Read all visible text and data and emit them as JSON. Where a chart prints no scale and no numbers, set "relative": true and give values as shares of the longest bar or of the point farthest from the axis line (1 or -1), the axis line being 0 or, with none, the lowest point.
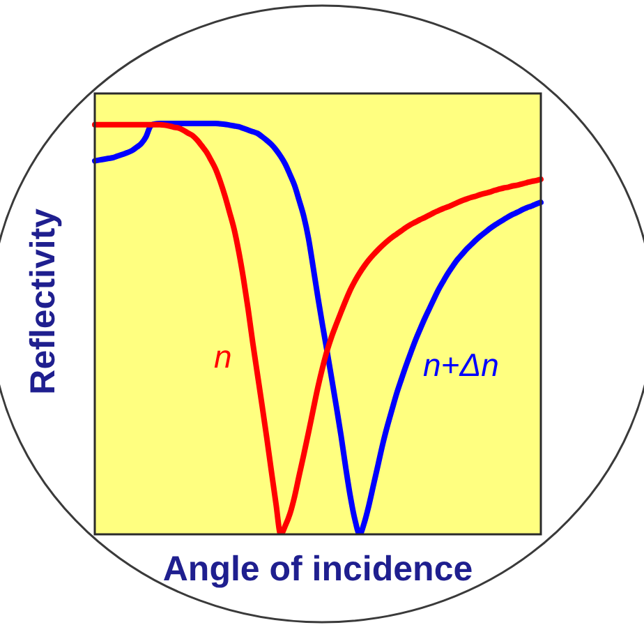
{
  "chart_data": {
    "type": "line",
    "xlabel": "Angle of incidence",
    "ylabel": "Reflectivity",
    "relative": true,
    "tick_labels": false,
    "marker": "none",
    "categories": [
      null,
      null,
      null,
      null,
      null,
      null,
      null,
      null,
      null,
      null,
      null,
      null,
      null,
      null,
      null,
      null,
      null,
      null,
      null,
      null,
      null,
      null,
      null,
      null,
      null,
      null,
      null,
      null,
      null,
      null,
      null,
      null,
      null,
      null,
      null,
      null,
      null,
      null,
      null,
      null,
      null,
      null,
      null,
      null,
      null,
      null,
      null,
      null,
      null,
      null,
      null,
      null,
      null,
      null,
      null,
      null,
      null,
      null,
      null,
      null,
      null,
      null,
      null,
      null,
      null,
      null,
      null,
      null,
      null,
      null,
      null,
      null,
      null,
      null,
      null,
      null,
      null,
      null,
      null,
      null,
      null,
      null,
      null,
      null,
      null,
      null,
      null,
      null,
      null,
      null,
      null,
      null,
      null,
      null,
      null,
      null,
      null
    ],
    "series": [
      {
        "name": "n",
        "color": "#ff0000",
        "values": [
          0.997,
          0.997,
          0.997,
          0.997,
          0.997,
          0.997,
          0.997,
          0.997,
          0.997,
          0.997,
          0.997,
          0.997,
          0.997,
          0.997,
          0.997,
          0.996,
          0.994,
          0.991,
          0.989,
          0.984,
          0.977,
          0.971,
          0.96,
          0.946,
          0.931,
          0.911,
          0.889,
          0.859,
          0.824,
          0.784,
          0.742,
          0.687,
          0.622,
          0.548,
          0.466,
          0.39,
          0.314,
          0.236,
          0.154,
          0.074,
          0,
          0.021,
          0.05,
          0.092,
          0.144,
          0.195,
          0.248,
          0.303,
          0.357,
          0.405,
          0.447,
          0.482,
          0.512,
          0.541,
          0.569,
          0.595,
          0.617,
          0.636,
          0.653,
          0.668,
          0.681,
          0.693,
          0.704,
          0.714,
          0.723,
          0.731,
          0.739,
          0.747,
          0.754,
          0.76,
          0.766,
          0.771,
          0.777,
          0.783,
          0.788,
          0.793,
          0.797,
          0.802,
          0.807,
          0.812,
          0.816,
          0.82,
          0.823,
          0.827,
          0.83,
          0.833,
          0.837,
          0.84,
          0.843,
          0.845,
          0.848,
          0.85,
          0.853,
          0.856,
          0.859,
          0.861,
          0.864
        ]
      },
      {
        "name": "n+Δn",
        "color": "#0000ff",
        "values": [
          0.909,
          0.911,
          0.913,
          0.915,
          0.917,
          0.921,
          0.925,
          0.929,
          0.934,
          0.942,
          0.951,
          0.967,
          0.994,
          0.999,
          1,
          1,
          1,
          1,
          1,
          1,
          1,
          1,
          1,
          1,
          1,
          1,
          1,
          0.999,
          0.998,
          0.996,
          0.994,
          0.992,
          0.988,
          0.984,
          0.98,
          0.976,
          0.968,
          0.959,
          0.949,
          0.936,
          0.92,
          0.901,
          0.876,
          0.849,
          0.812,
          0.773,
          0.72,
          0.65,
          0.578,
          0.51,
          0.445,
          0.378,
          0.31,
          0.24,
          0.163,
          0.092,
          0.035,
          0,
          0.028,
          0.071,
          0.121,
          0.171,
          0.221,
          0.265,
          0.305,
          0.344,
          0.378,
          0.411,
          0.442,
          0.472,
          0.499,
          0.525,
          0.549,
          0.573,
          0.596,
          0.616,
          0.635,
          0.652,
          0.668,
          0.681,
          0.694,
          0.705,
          0.716,
          0.726,
          0.735,
          0.744,
          0.752,
          0.759,
          0.766,
          0.773,
          0.779,
          0.784,
          0.79,
          0.795,
          0.799,
          0.804,
          0.808
        ]
      }
    ]
  }
}
